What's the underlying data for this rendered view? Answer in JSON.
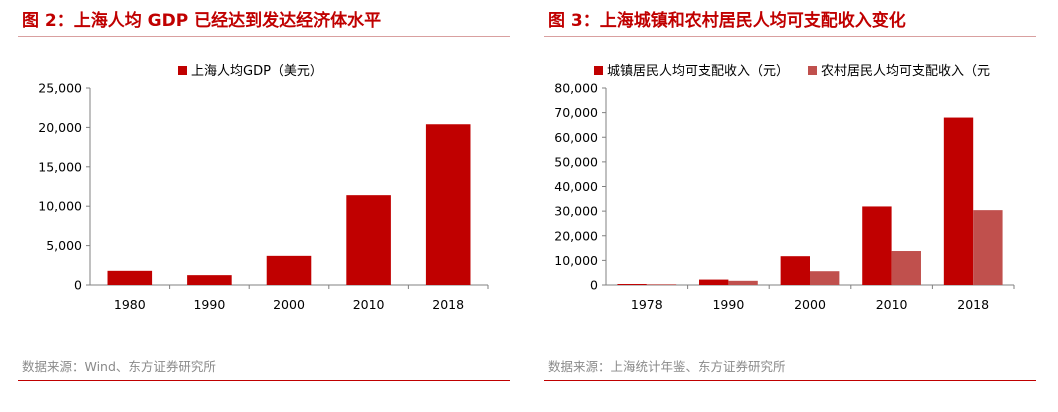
{
  "colors": {
    "primary": "#c00000",
    "secondary": "#c0504d",
    "source_text": "#8a8a8a"
  },
  "figure_left": {
    "title": "图 2：上海人均 GDP 已经达到发达经济体水平",
    "source": "数据来源：Wind、东方证券研究所"
  },
  "figure_right": {
    "title": "图 3：上海城镇和农村居民人均可支配收入变化",
    "source": "数据来源：上海统计年鉴、东方证券研究所"
  },
  "chart_data": [
    {
      "type": "bar",
      "categories": [
        "1980",
        "1990",
        "2000",
        "2010",
        "2018"
      ],
      "series": [
        {
          "name": "上海人均GDP（美元）",
          "values": [
            1800,
            1250,
            3700,
            11400,
            20400
          ],
          "color": "#c00000"
        }
      ],
      "ylim": [
        0,
        25000
      ],
      "yticks": [
        0,
        5000,
        10000,
        15000,
        20000,
        25000
      ],
      "ytick_labels": [
        "0",
        "5,000",
        "10,000",
        "15,000",
        "20,000",
        "25,000"
      ],
      "legend": "top",
      "grid": false
    },
    {
      "type": "bar",
      "categories": [
        "1978",
        "1990",
        "2000",
        "2010",
        "2018"
      ],
      "series": [
        {
          "name": "城镇居民人均可支配收入（元）",
          "values": [
            400,
            2200,
            11700,
            31900,
            68000
          ],
          "color": "#c00000"
        },
        {
          "name": "农村居民人均可支配收入（元",
          "values": [
            300,
            1700,
            5600,
            13800,
            30400
          ],
          "color": "#c0504d"
        }
      ],
      "ylim": [
        0,
        80000
      ],
      "yticks": [
        0,
        10000,
        20000,
        30000,
        40000,
        50000,
        60000,
        70000,
        80000
      ],
      "ytick_labels": [
        "0",
        "10,000",
        "20,000",
        "30,000",
        "40,000",
        "50,000",
        "60,000",
        "70,000",
        "80,000"
      ],
      "legend": "top",
      "grid": false
    }
  ]
}
